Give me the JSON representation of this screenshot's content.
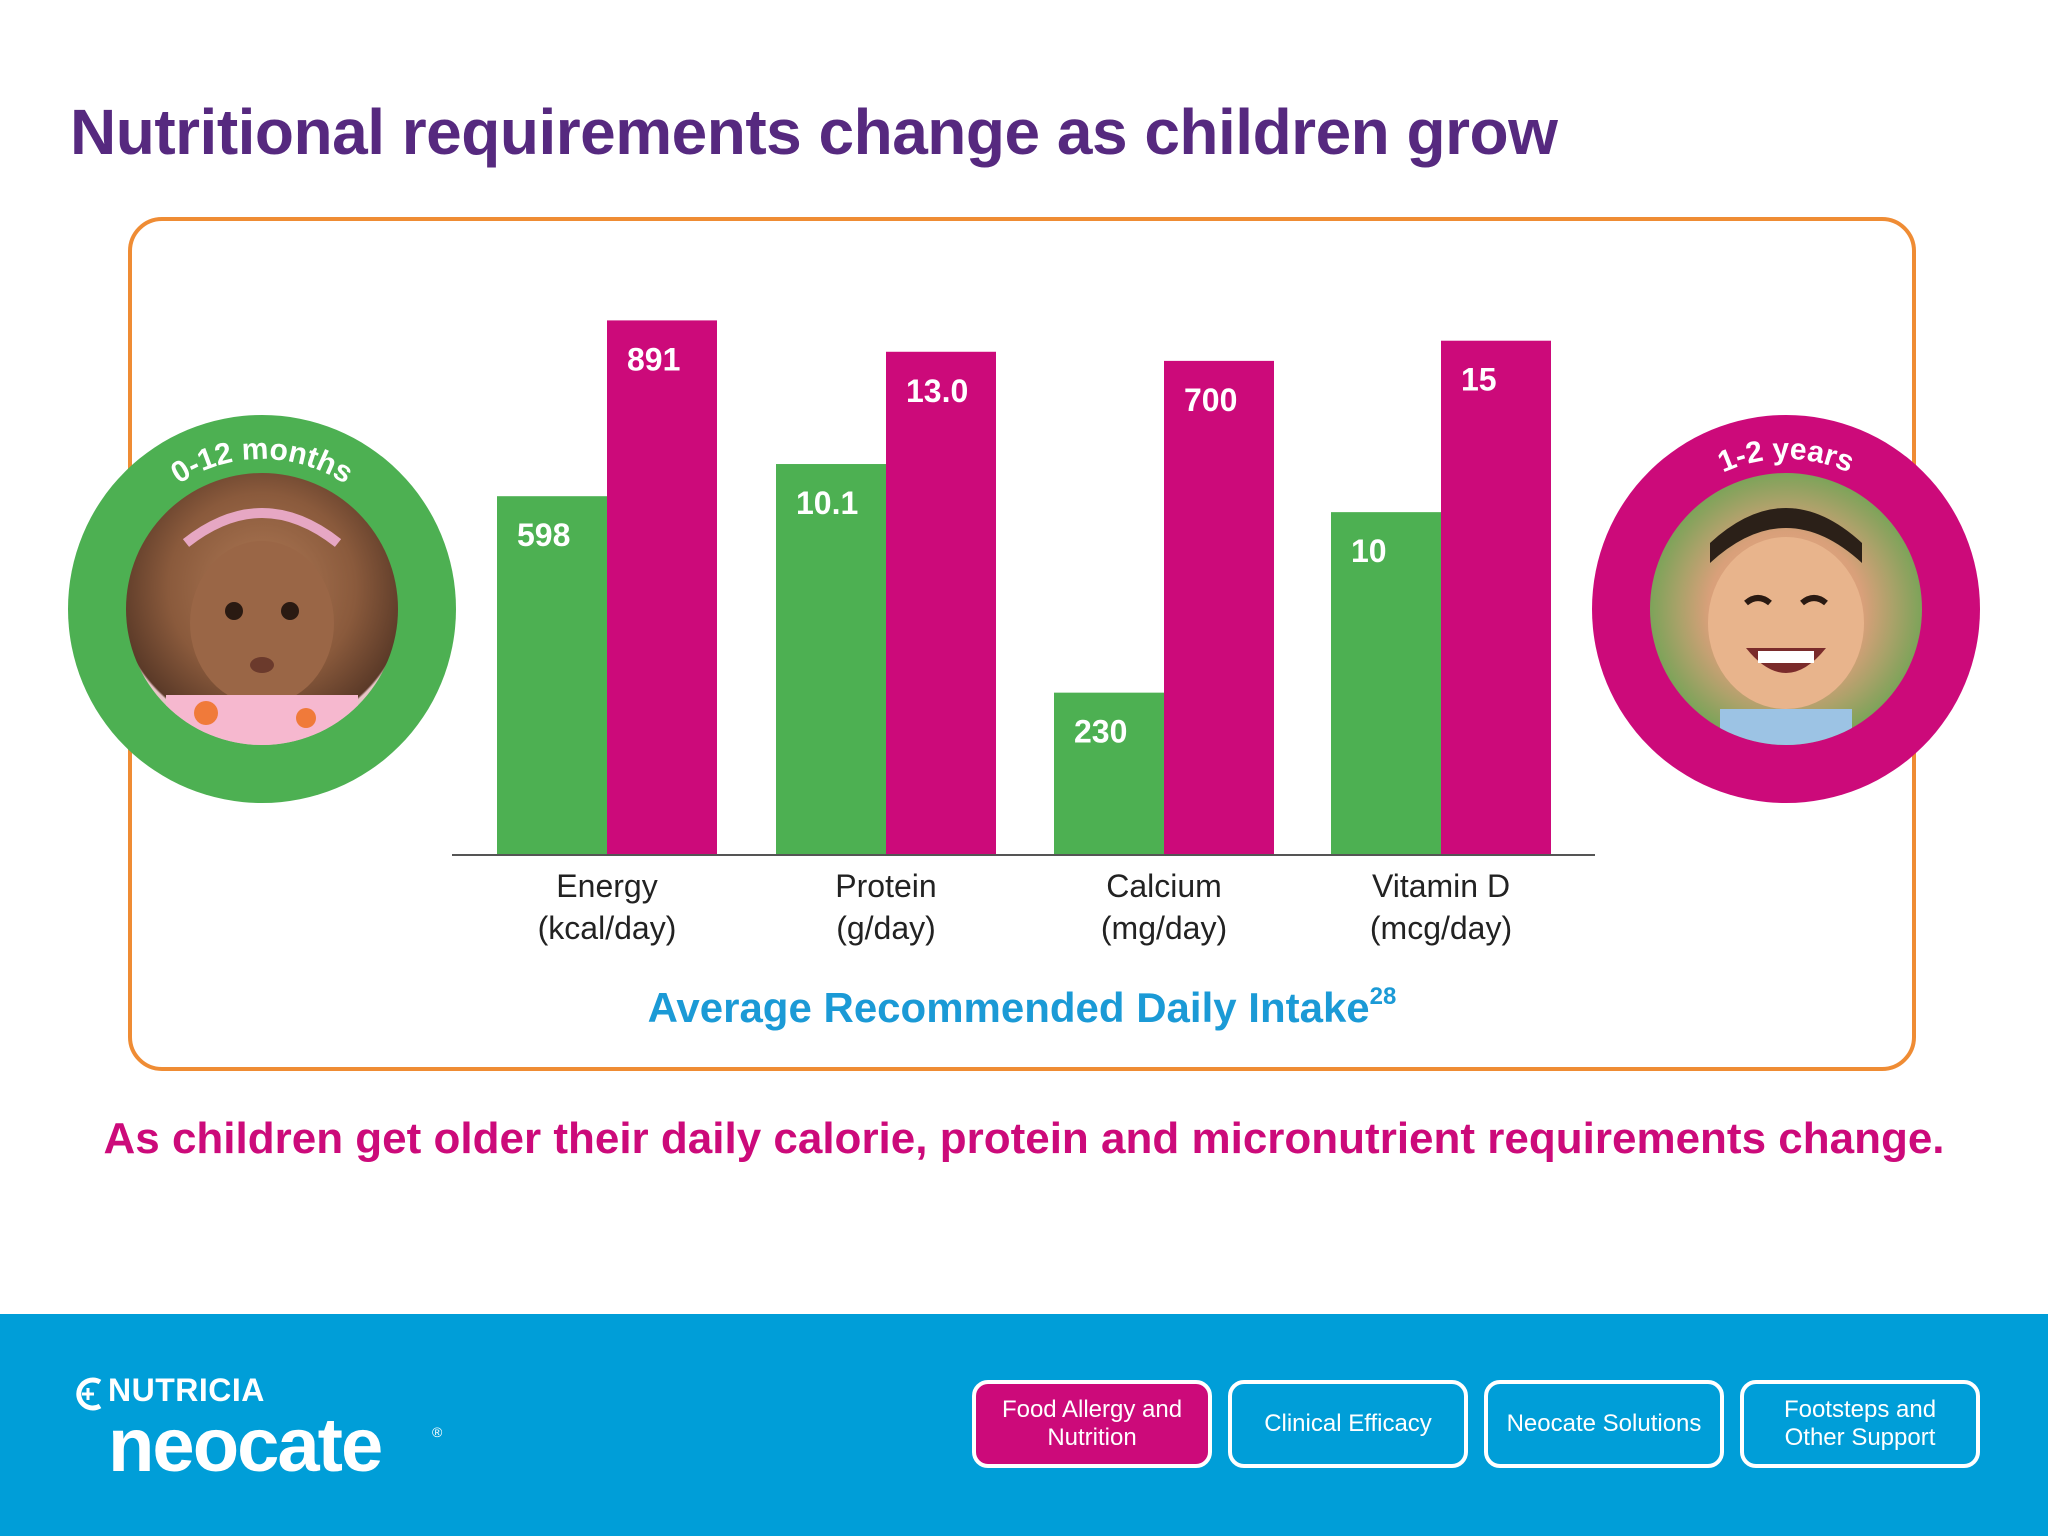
{
  "title": "Nutritional requirements change as children grow",
  "subtitle": "As children get older their daily calorie, protein and micronutrient requirements change.",
  "age_groups": {
    "infant": {
      "label": "0-12 months",
      "color": "#4db052"
    },
    "toddler": {
      "label": "1-2 years",
      "color": "#cc0a7a"
    }
  },
  "chart_data": {
    "type": "bar",
    "title": "Average Recommended Daily Intake",
    "title_superscript": "28",
    "categories": [
      {
        "name": "Energy",
        "unit": "(kcal/day)"
      },
      {
        "name": "Protein",
        "unit": "(g/day)"
      },
      {
        "name": "Calcium",
        "unit": "(mg/day)"
      },
      {
        "name": "Vitamin D",
        "unit": "(mcg/day)"
      }
    ],
    "series": [
      {
        "name": "0-12 months",
        "color": "#4db052",
        "values": [
          598,
          10.1,
          230,
          10
        ],
        "labels": [
          "598",
          "10.1",
          "230",
          "10"
        ]
      },
      {
        "name": "1-2 years",
        "color": "#cc0a7a",
        "values": [
          891,
          13.0,
          700,
          15
        ],
        "labels": [
          "891",
          "13.0",
          "700",
          "15"
        ]
      }
    ],
    "per_category_ranges": [
      [
        0,
        1000
      ],
      [
        0,
        15.5
      ],
      [
        0,
        850
      ],
      [
        0,
        17.5
      ]
    ],
    "xlabel": "",
    "ylabel": "",
    "grid": false
  },
  "footer": {
    "brand": "NUTRICIA",
    "product": "neocate",
    "registered": "®",
    "nav": [
      {
        "label": "Food Allergy and Nutrition",
        "active": true
      },
      {
        "label": "Clinical Efficacy",
        "active": false
      },
      {
        "label": "Neocate Solutions",
        "active": false
      },
      {
        "label": "Footsteps and Other Support",
        "active": false
      }
    ]
  }
}
